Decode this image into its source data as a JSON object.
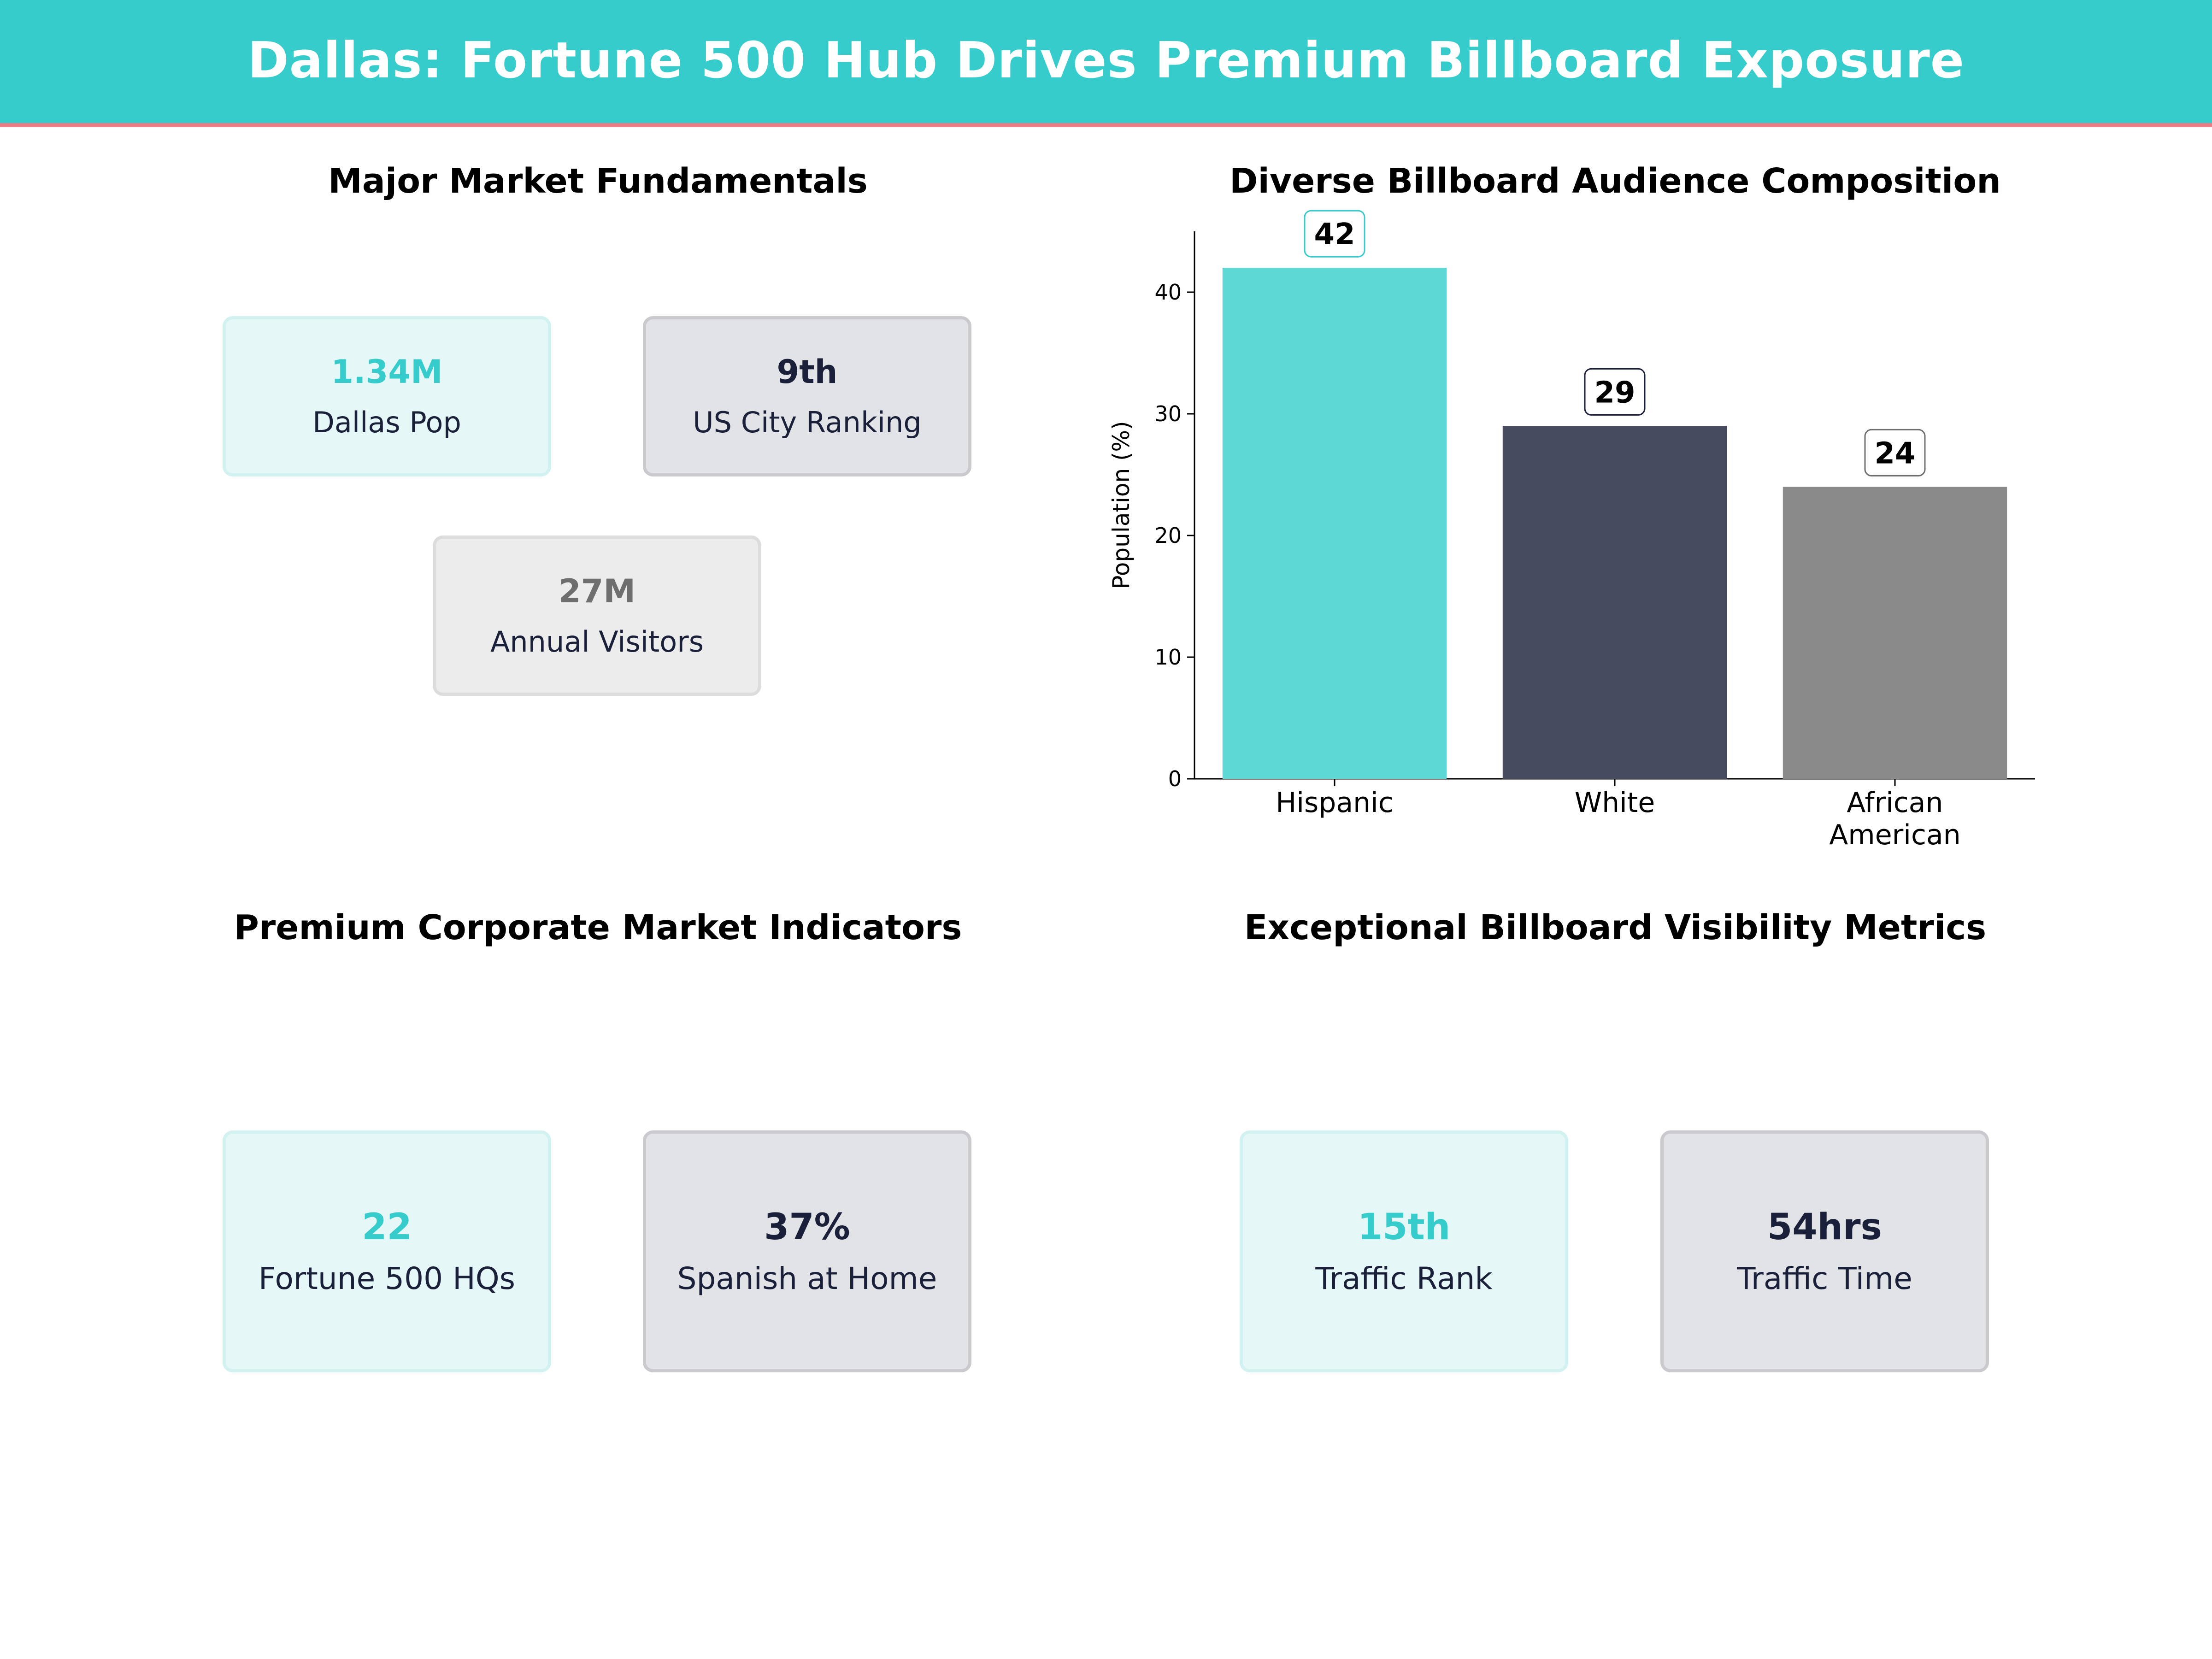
{
  "header": {
    "title": "Dallas: Fortune 500 Hub Drives Premium Billboard Exposure",
    "background": "#36cccc",
    "accent": "#e87d86"
  },
  "panels": {
    "fundamentals": {
      "title": "Major Market Fundamentals",
      "cards": [
        {
          "value": "1.34M",
          "label": "Dallas Pop",
          "style": "teal"
        },
        {
          "value": "9th",
          "label": "US City Ranking",
          "style": "navy"
        },
        {
          "value": "27M",
          "label": "Annual Visitors",
          "style": "gray"
        }
      ]
    },
    "audience": {
      "title": "Diverse Billboard Audience Composition"
    },
    "corporate": {
      "title": "Premium Corporate Market Indicators",
      "cards": [
        {
          "value": "22",
          "label": "Fortune 500 HQs",
          "style": "teal"
        },
        {
          "value": "37%",
          "label": "Spanish at Home",
          "style": "navy"
        }
      ]
    },
    "visibility": {
      "title": "Exceptional Billboard Visibility Metrics",
      "cards": [
        {
          "value": "15th",
          "label": "Traffic Rank",
          "style": "teal"
        },
        {
          "value": "54hrs",
          "label": "Traffic Time",
          "style": "navy"
        }
      ]
    }
  },
  "chart_data": {
    "type": "bar",
    "title": "Diverse Billboard Audience Composition",
    "categories": [
      "Hispanic",
      "White",
      "African American"
    ],
    "category_lines": [
      [
        "Hispanic"
      ],
      [
        "White"
      ],
      [
        "African",
        "American"
      ]
    ],
    "values": [
      42,
      29,
      24
    ],
    "colors": [
      "#5dd8d5",
      "#464a5f",
      "#8a8a8a"
    ],
    "label_border_colors": [
      "#36cccc",
      "#1a1f3a",
      "#6e6e6e"
    ],
    "xlabel": "",
    "ylabel": "Population (%)",
    "ylim": [
      0,
      45
    ],
    "yticks": [
      0,
      10,
      20,
      30,
      40
    ],
    "grid": false,
    "legend": "none"
  }
}
